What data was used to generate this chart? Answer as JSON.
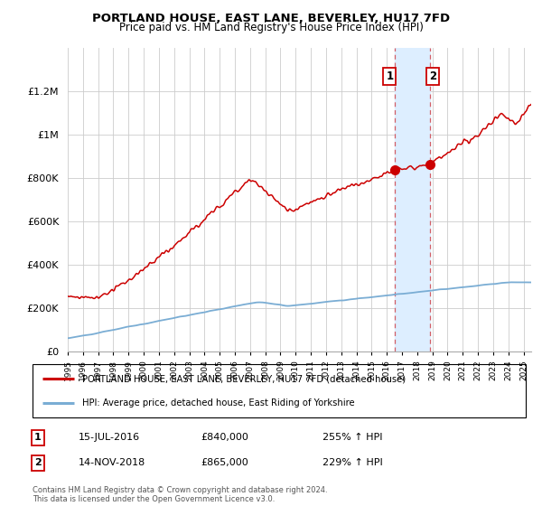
{
  "title": "PORTLAND HOUSE, EAST LANE, BEVERLEY, HU17 7FD",
  "subtitle": "Price paid vs. HM Land Registry's House Price Index (HPI)",
  "legend_line1": "PORTLAND HOUSE, EAST LANE, BEVERLEY, HU17 7FD (detached house)",
  "legend_line2": "HPI: Average price, detached house, East Riding of Yorkshire",
  "annotation1_date": "15-JUL-2016",
  "annotation1_price": "£840,000",
  "annotation1_hpi": "255% ↑ HPI",
  "annotation2_date": "14-NOV-2018",
  "annotation2_price": "£865,000",
  "annotation2_hpi": "229% ↑ HPI",
  "footer": "Contains HM Land Registry data © Crown copyright and database right 2024.\nThis data is licensed under the Open Government Licence v3.0.",
  "sale1_year": 2016.54,
  "sale1_value": 840000,
  "sale2_year": 2018.87,
  "sale2_value": 865000,
  "hpi_color": "#7aadd4",
  "price_color": "#cc0000",
  "highlight_color": "#ddeeff",
  "background_color": "#ffffff",
  "grid_color": "#cccccc",
  "ylim_max": 1400000,
  "xlim_start": 1995.0,
  "xlim_end": 2025.5
}
